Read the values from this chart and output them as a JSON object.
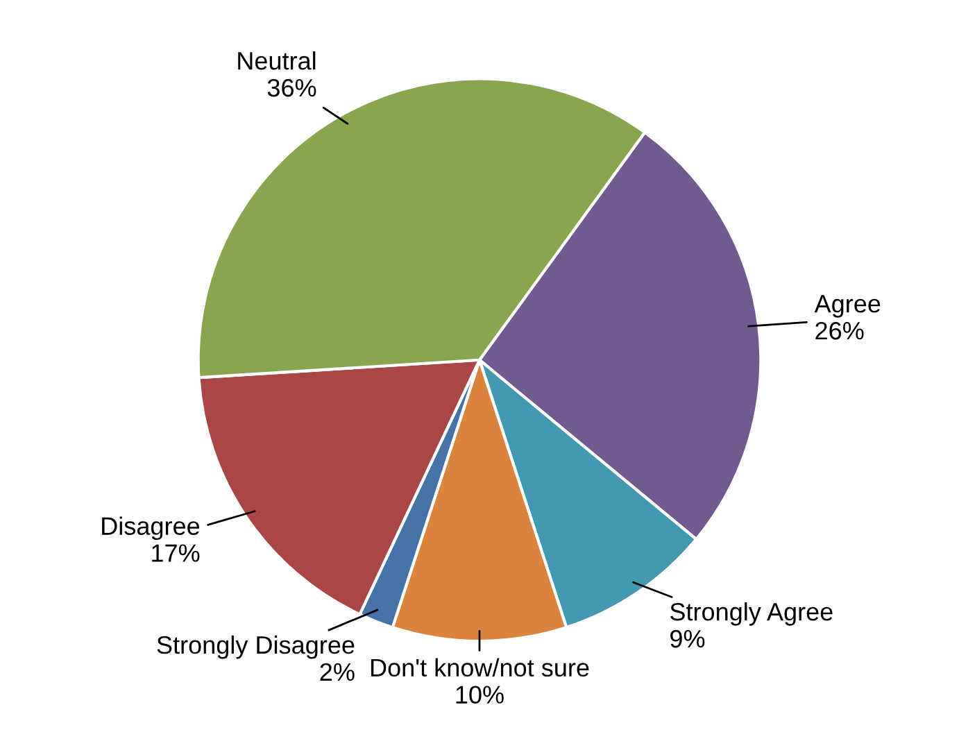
{
  "chart_data": {
    "type": "pie",
    "categories": [
      "Agree",
      "Strongly Agree",
      "Don't know/not sure",
      "Strongly Disagree",
      "Disagree",
      "Neutral"
    ],
    "values": [
      26,
      9,
      10,
      2,
      17,
      36
    ],
    "colors": [
      "#715a8f",
      "#4299b1",
      "#db843d",
      "#4572a7",
      "#a84746",
      "#89a54e"
    ],
    "value_labels": [
      "26%",
      "9%",
      "10%",
      "2%",
      "17%",
      "36%"
    ]
  }
}
